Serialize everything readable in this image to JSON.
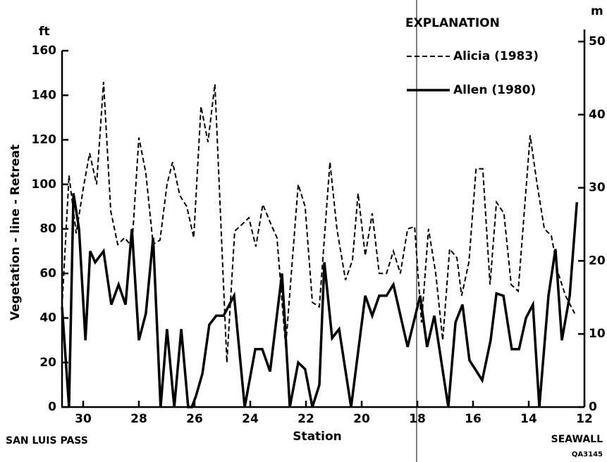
{
  "chart_data": {
    "type": "line",
    "y_unit": "ft",
    "y2_unit": "m",
    "ylabel": "Vegetation - line - Retreat",
    "xlabel": "Station",
    "annotations": [
      "SAN LUIS PASS",
      "SEAWALL",
      "QA3145"
    ],
    "legend_title": "EXPLANATION",
    "xlim": [
      30.76,
      12
    ],
    "xticks": [
      30,
      28,
      26,
      24,
      22,
      20,
      18,
      16,
      14,
      12
    ],
    "ylim": [
      0,
      160
    ],
    "yticks": [
      0,
      20,
      40,
      60,
      80,
      100,
      120,
      140,
      160
    ],
    "y2lim": [
      0,
      50
    ],
    "y2ticks": [
      0,
      10,
      20,
      30,
      40,
      50
    ],
    "series": [
      {
        "name": "Alicia (1983)",
        "color": "#000000",
        "dash": "dashed",
        "x": [
          30.76,
          30.51,
          30.25,
          30.0,
          29.77,
          29.52,
          29.27,
          29.01,
          28.76,
          28.51,
          28.25,
          28.0,
          27.75,
          27.49,
          27.24,
          26.99,
          26.79,
          26.53,
          26.28,
          26.03,
          25.77,
          25.52,
          25.27,
          24.84,
          24.56,
          24.3,
          24.05,
          23.8,
          23.55,
          23.29,
          23.04,
          22.73,
          22.28,
          22.03,
          21.77,
          21.52,
          21.14,
          20.89,
          20.58,
          20.33,
          20.13,
          19.87,
          19.62,
          19.37,
          19.11,
          18.86,
          18.61,
          18.35,
          18.1,
          17.85,
          17.6,
          17.34,
          17.09,
          16.84,
          16.58,
          16.41,
          16.15,
          15.89,
          15.65,
          15.39,
          15.16,
          14.89,
          14.63,
          14.38,
          13.95,
          13.7,
          13.44,
          13.19,
          12.94,
          12.68,
          12.35
        ],
        "values": [
          45,
          104,
          78,
          98,
          114,
          100,
          146,
          88,
          73,
          76,
          72,
          121,
          105,
          73,
          75,
          100,
          110,
          95,
          90,
          76,
          135,
          119,
          145,
          20,
          79,
          82,
          85,
          72,
          91,
          83,
          76,
          27,
          100,
          90,
          47,
          45,
          110,
          80,
          57,
          66,
          96,
          68,
          87,
          60,
          60,
          70,
          60,
          80,
          81,
          38,
          80,
          60,
          30,
          71,
          67,
          50,
          65,
          107,
          107,
          55,
          92,
          87,
          55,
          52,
          122,
          100,
          80,
          77,
          60,
          50,
          42
        ]
      },
      {
        "name": "Allen (1980)",
        "color": "#000000",
        "dash": "solid",
        "x": [
          30.76,
          30.51,
          30.35,
          30.15,
          29.92,
          29.75,
          29.57,
          29.27,
          28.99,
          28.73,
          28.48,
          28.25,
          28.0,
          27.75,
          27.49,
          27.22,
          26.99,
          26.73,
          26.48,
          26.23,
          26.1,
          25.95,
          25.72,
          25.47,
          25.22,
          24.96,
          24.58,
          24.2,
          23.82,
          23.57,
          23.29,
          22.86,
          22.58,
          22.28,
          22.03,
          21.77,
          21.52,
          21.34,
          21.06,
          20.81,
          20.38,
          19.87,
          19.62,
          19.37,
          19.11,
          18.86,
          18.35,
          17.9,
          17.65,
          17.39,
          16.89,
          16.63,
          16.38,
          16.13,
          15.87,
          15.67,
          15.37,
          15.16,
          14.91,
          14.61,
          14.35,
          14.1,
          13.85,
          13.62,
          13.29,
          13.04,
          12.81,
          12.53,
          12.27
        ],
        "values": [
          45,
          0,
          96,
          80,
          30,
          70,
          65,
          70,
          46,
          55,
          46,
          80,
          30,
          42,
          76,
          0,
          35,
          0,
          35,
          0,
          0,
          5,
          15,
          37,
          41,
          41,
          50,
          0,
          26,
          26,
          16,
          60,
          0,
          20,
          17,
          0,
          10,
          65,
          31,
          35,
          0,
          50,
          41,
          50,
          50,
          55,
          27,
          50,
          27,
          41,
          0,
          38,
          46,
          21,
          16,
          12,
          30,
          51,
          50,
          26,
          26,
          40,
          46,
          0,
          50,
          71,
          30,
          50,
          92
        ]
      }
    ]
  }
}
